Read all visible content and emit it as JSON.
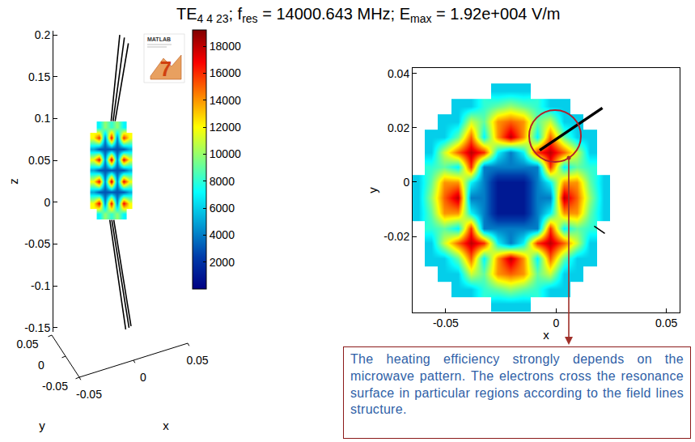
{
  "title": [
    {
      "text": "TE"
    },
    {
      "text": "4 4 23",
      "sub": true
    },
    {
      "text": "; f"
    },
    {
      "text": "res",
      "sub": true
    },
    {
      "text": " = 14000.643 MHz; E"
    },
    {
      "text": "max",
      "sub": true
    },
    {
      "text": " = 1.92e+004 V/m"
    }
  ],
  "chart_data": [
    {
      "type": "heatmap",
      "ylabel": "z",
      "xlim": [
        -0.087,
        0.113
      ],
      "ylim": [
        -0.155,
        0.205
      ],
      "yticks": [
        -0.15,
        -0.1,
        -0.05,
        0,
        0.05,
        0.1,
        0.15,
        0.2
      ],
      "tick_labels": "y",
      "x": [
        -0.027,
        -0.018,
        -0.009,
        0,
        0.009,
        0.018,
        0.027
      ],
      "y": [
        -0.014,
        -0.001,
        0.012,
        0.025,
        0.038,
        0.051,
        0.064,
        0.077,
        0.09
      ],
      "cells": [
        [
          null,
          7000,
          10000,
          8000,
          10000,
          7000,
          null
        ],
        [
          12000,
          17000,
          4000,
          17000,
          4000,
          17000,
          12000
        ],
        [
          5000,
          3000,
          3000,
          3000,
          3000,
          3000,
          5000
        ],
        [
          12000,
          17000,
          4000,
          18000,
          4000,
          17000,
          12000
        ],
        [
          5000,
          3000,
          3000,
          3000,
          3000,
          3000,
          5000
        ],
        [
          12000,
          17000,
          4000,
          18000,
          4000,
          17000,
          12000
        ],
        [
          5000,
          3000,
          3000,
          3000,
          3000,
          3000,
          5000
        ],
        [
          12000,
          16000,
          4000,
          17000,
          4000,
          16000,
          12000
        ],
        [
          null,
          7000,
          10000,
          8000,
          10000,
          7000,
          null
        ]
      ],
      "field_lines": [
        {
          "x": [
            0,
            0.013
          ],
          "y": [
            0.097,
            0.2
          ]
        },
        {
          "x": [
            0.003,
            0.02
          ],
          "y": [
            0.097,
            0.197
          ]
        },
        {
          "x": [
            0.006,
            0.026
          ],
          "y": [
            0.097,
            0.19
          ]
        },
        {
          "x": [
            -0.002,
            0.022
          ],
          "y": [
            -0.021,
            -0.152
          ]
        },
        {
          "x": [
            0.001,
            0.027
          ],
          "y": [
            -0.021,
            -0.15
          ]
        },
        {
          "x": [
            0.004,
            0.03
          ],
          "y": [
            -0.021,
            -0.148
          ]
        }
      ],
      "base_axes": [
        {
          "label": "y",
          "ticks": [
            0.05,
            0,
            -0.05
          ]
        },
        {
          "label": "x",
          "ticks": [
            -0.05,
            0,
            0.05
          ]
        }
      ]
    },
    {
      "type": "heatmap",
      "xlabel": "x",
      "ylabel": "y",
      "xlim": [
        -0.065,
        0.056
      ],
      "ylim": [
        -0.048,
        0.042
      ],
      "xticks": [
        -0.05,
        0,
        0.05
      ],
      "yticks": [
        -0.02,
        0,
        0.02,
        0.04
      ],
      "x": [
        -0.0626,
        -0.0566,
        -0.0506,
        -0.0446,
        -0.0386,
        -0.0326,
        -0.0266,
        -0.0206,
        -0.0146,
        -0.0086,
        -0.0026,
        0.0034,
        0.0094,
        0.0154,
        0.0214
      ],
      "y": [
        -0.0449,
        -0.0393,
        -0.0337,
        -0.0281,
        -0.0225,
        -0.0169,
        -0.0113,
        -0.0057,
        -0.0001,
        0.0055,
        0.0111,
        0.0167,
        0.0223,
        0.0279,
        0.0335
      ],
      "cells": [
        [
          null,
          null,
          null,
          null,
          null,
          null,
          6000,
          6000,
          6000,
          null,
          null,
          null,
          null,
          null,
          null
        ],
        [
          null,
          null,
          null,
          6000,
          6000,
          8000,
          9000,
          10000,
          9000,
          8000,
          6000,
          6000,
          null,
          null,
          null
        ],
        [
          null,
          null,
          6000,
          6000,
          11000,
          9000,
          14000,
          15000,
          14000,
          9000,
          11000,
          6000,
          6000,
          null,
          null
        ],
        [
          null,
          6000,
          6000,
          9000,
          15000,
          7000,
          14000,
          18000,
          14000,
          7000,
          15000,
          9000,
          6000,
          6000,
          null
        ],
        [
          null,
          6000,
          11000,
          15000,
          18000,
          16000,
          7000,
          4000,
          7000,
          16000,
          18000,
          15000,
          11000,
          6000,
          null
        ],
        [
          null,
          8000,
          9000,
          7000,
          16000,
          4000,
          4000,
          4000,
          4000,
          4000,
          16000,
          7000,
          9000,
          8000,
          null
        ],
        [
          6000,
          9000,
          14000,
          14000,
          7000,
          4000,
          1000,
          1000,
          1000,
          4000,
          7000,
          14000,
          14000,
          9000,
          6000
        ],
        [
          6000,
          10000,
          15000,
          18000,
          4000,
          4000,
          1000,
          1000,
          1000,
          4000,
          4000,
          18000,
          15000,
          10000,
          6000
        ],
        [
          6000,
          9000,
          14000,
          14000,
          7000,
          4000,
          1000,
          1000,
          1000,
          4000,
          7000,
          14000,
          14000,
          9000,
          6000
        ],
        [
          null,
          8000,
          9000,
          7000,
          16000,
          4000,
          4000,
          4000,
          4000,
          4000,
          16000,
          7000,
          9000,
          8000,
          null
        ],
        [
          null,
          6000,
          11000,
          15000,
          18000,
          16000,
          7000,
          4000,
          7000,
          16000,
          18000,
          15000,
          11000,
          6000,
          null
        ],
        [
          null,
          6000,
          6000,
          9000,
          15000,
          7000,
          14000,
          18000,
          14000,
          7000,
          15000,
          9000,
          6000,
          6000,
          null
        ],
        [
          null,
          null,
          6000,
          6000,
          11000,
          9000,
          14000,
          15000,
          14000,
          9000,
          11000,
          6000,
          6000,
          null,
          null
        ],
        [
          null,
          null,
          null,
          6000,
          6000,
          8000,
          9000,
          10000,
          9000,
          8000,
          6000,
          6000,
          null,
          null,
          null
        ],
        [
          null,
          null,
          null,
          null,
          null,
          null,
          6000,
          6000,
          6000,
          null,
          null,
          null,
          null,
          null,
          null
        ]
      ],
      "field_lines": [
        {
          "x": [
            -0.0074,
            0.006,
            0.021
          ],
          "y": [
            0.0117,
            0.019,
            0.0273
          ]
        },
        {
          "x": [
            0.0173,
            0.0221
          ],
          "y": [
            -0.0162,
            -0.0189
          ]
        }
      ]
    }
  ],
  "colorbar": {
    "range": [
      0,
      19200
    ],
    "ticks": [
      2000,
      4000,
      6000,
      8000,
      10000,
      12000,
      14000,
      16000,
      18000
    ]
  },
  "logo": {
    "text": "MATLAB",
    "version": "7"
  },
  "callout": "The heating efficiency strongly depends on the microwave pattern. The electrons cross the resonance surface in particular regions according to the field lines structure."
}
